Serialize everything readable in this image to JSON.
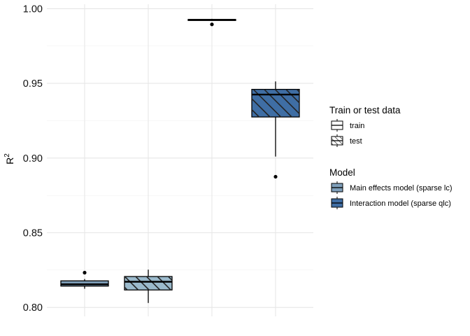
{
  "chart_data": {
    "type": "boxplot",
    "ylabel_base": "R",
    "ylabel_sup": "2",
    "ylim": [
      0.794,
      1.003
    ],
    "yticks": [
      "0.80",
      "0.85",
      "0.90",
      "0.95",
      "1.00"
    ],
    "ytick_values": [
      0.8,
      0.85,
      0.9,
      0.95,
      1.0
    ],
    "grid": true,
    "legend_position": "right",
    "legend": [
      {
        "title": "Train or test data",
        "entries": [
          {
            "label": "train",
            "pattern": "none"
          },
          {
            "label": "test",
            "pattern": "hatch"
          }
        ]
      },
      {
        "title": "Model",
        "entries": [
          {
            "label": "Main effects model (sparse lc)",
            "color": "#7f9fba"
          },
          {
            "label": "Interaction model (sparse qlc)",
            "color": "#3f6ea4"
          }
        ]
      }
    ],
    "boxes": [
      {
        "model": "Main effects model (sparse lc)",
        "data": "train",
        "color": "#7f9fba",
        "hatch": false,
        "whisker_low": 0.8125,
        "q1": 0.8143,
        "median": 0.8155,
        "q3": 0.8178,
        "whisker_high": 0.819,
        "outliers": [
          0.8233
        ]
      },
      {
        "model": "Main effects model (sparse lc)",
        "data": "test",
        "color": "#9bbacc",
        "hatch": true,
        "whisker_low": 0.803,
        "q1": 0.8117,
        "median": 0.8172,
        "q3": 0.8207,
        "whisker_high": 0.8253,
        "outliers": []
      },
      {
        "model": "Interaction model (sparse qlc)",
        "data": "train",
        "color": "#3f6ea4",
        "hatch": false,
        "whisker_low": 0.9919,
        "q1": 0.9922,
        "median": 0.9925,
        "q3": 0.9928,
        "whisker_high": 0.9932,
        "outliers": [
          0.9895
        ]
      },
      {
        "model": "Interaction model (sparse qlc)",
        "data": "test",
        "color": "#3f6ea4",
        "hatch": true,
        "whisker_low": 0.901,
        "q1": 0.9275,
        "median": 0.9425,
        "q3": 0.946,
        "whisker_high": 0.9513,
        "outliers": [
          0.8875
        ]
      }
    ]
  }
}
